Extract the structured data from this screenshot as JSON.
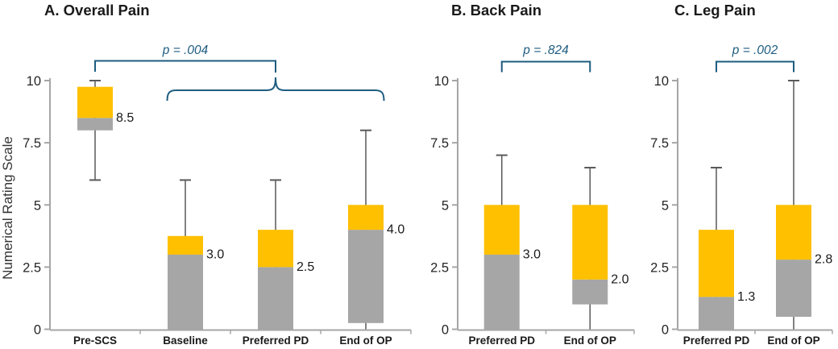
{
  "figure": {
    "y_axis_title": "Numerical Rating Scale",
    "colors": {
      "upper_box": "#FFC000",
      "lower_box": "#A6A6A6",
      "whisker": "#595959",
      "axis": "#A6A6A6",
      "text": "#1A1A1A",
      "annotation": "#1E5C80"
    }
  },
  "chart_data": [
    {
      "type": "boxplot",
      "title": "A. Overall Pain",
      "ylabel": "Numerical Rating Scale",
      "ylim": [
        0,
        10
      ],
      "yticks": [
        "0",
        "2.5",
        "5",
        "7.5",
        "10"
      ],
      "categories": [
        "Pre-SCS",
        "Baseline",
        "Preferred PD",
        "End of OP"
      ],
      "boxes": [
        {
          "category": "Pre-SCS",
          "q1": 8.0,
          "median": 8.5,
          "q3": 9.75,
          "whisker_low": 6.0,
          "whisker_high": 10.0,
          "median_label": "8.5"
        },
        {
          "category": "Baseline",
          "q1": 0.0,
          "median": 3.0,
          "q3": 3.75,
          "whisker_low": null,
          "whisker_high": 6.0,
          "median_label": "3.0"
        },
        {
          "category": "Preferred PD",
          "q1": 0.0,
          "median": 2.5,
          "q3": 4.0,
          "whisker_low": null,
          "whisker_high": 6.0,
          "median_label": "2.5"
        },
        {
          "category": "End of OP",
          "q1": 0.25,
          "median": 4.0,
          "q3": 5.0,
          "whisker_low": 0.0,
          "whisker_high": 8.0,
          "median_label": "4.0"
        }
      ],
      "comparison": {
        "label": "p = .004",
        "from": "Pre-SCS",
        "to_group": [
          "Baseline",
          "Preferred PD",
          "End of OP"
        ]
      }
    },
    {
      "type": "boxplot",
      "title": "B. Back Pain",
      "ylim": [
        0,
        10
      ],
      "yticks": [
        "0",
        "2.5",
        "5",
        "7.5",
        "10"
      ],
      "categories": [
        "Preferred PD",
        "End of OP"
      ],
      "boxes": [
        {
          "category": "Preferred PD",
          "q1": 0.0,
          "median": 3.0,
          "q3": 5.0,
          "whisker_low": null,
          "whisker_high": 7.0,
          "median_label": "3.0"
        },
        {
          "category": "End of OP",
          "q1": 1.0,
          "median": 2.0,
          "q3": 5.0,
          "whisker_low": 0.0,
          "whisker_high": 6.5,
          "median_label": "2.0"
        }
      ],
      "comparison": {
        "label": "p = .824",
        "between": [
          "Preferred PD",
          "End of OP"
        ]
      }
    },
    {
      "type": "boxplot",
      "title": "C. Leg Pain",
      "ylim": [
        0,
        10
      ],
      "yticks": [
        "0",
        "2.5",
        "5",
        "7.5",
        "10"
      ],
      "categories": [
        "Preferred PD",
        "End of OP"
      ],
      "boxes": [
        {
          "category": "Preferred PD",
          "q1": 0.0,
          "median": 1.3,
          "q3": 4.0,
          "whisker_low": null,
          "whisker_high": 6.5,
          "median_label": "1.3"
        },
        {
          "category": "End of OP",
          "q1": 0.5,
          "median": 2.8,
          "q3": 5.0,
          "whisker_low": 0.0,
          "whisker_high": 10.0,
          "median_label": "2.8"
        }
      ],
      "comparison": {
        "label": "p = .002",
        "between": [
          "Preferred PD",
          "End of OP"
        ]
      }
    }
  ]
}
